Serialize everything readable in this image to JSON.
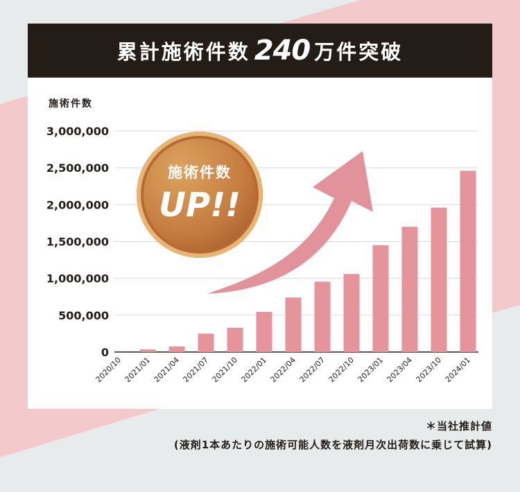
{
  "banner": {
    "prefix": "累計施術件数",
    "number": "240",
    "suffix": "万件突破"
  },
  "badge": {
    "line1": "施術件数",
    "line2": "UP!!"
  },
  "footnote": {
    "line1": "＊当社推計値",
    "line2": "(液剤1本あたりの施術可能人数を液剤月次出荷数に乗じて試算)"
  },
  "colors": {
    "bar": "#e6949c",
    "arrow": "#e2929a",
    "banner": "#231c17",
    "grid": "#d9d9d9"
  },
  "chart_data": {
    "type": "bar",
    "title": "累計施術件数240万件突破",
    "ylabel": "施術件数",
    "xlabel": "",
    "ylim": [
      0,
      3000000
    ],
    "yticks": [
      {
        "value": 0,
        "label": "0"
      },
      {
        "value": 500000,
        "label": "500,000"
      },
      {
        "value": 1000000,
        "label": "1,000,000"
      },
      {
        "value": 1500000,
        "label": "1,500,000"
      },
      {
        "value": 2000000,
        "label": "2,000,000"
      },
      {
        "value": 2500000,
        "label": "2,500,000"
      },
      {
        "value": 3000000,
        "label": "3,000,000"
      }
    ],
    "categories": [
      "2020/10",
      "2021/01",
      "2021/04",
      "2021/07",
      "2021/10",
      "2022/01",
      "2022/04",
      "2022/07",
      "2022/10",
      "2023/01",
      "2023/04",
      "2023/10",
      "2024/01"
    ],
    "values": [
      0,
      35000,
      75000,
      250000,
      330000,
      545000,
      740000,
      955000,
      1060000,
      1450000,
      1700000,
      1960000,
      2460000
    ],
    "grid": true,
    "legend": "none"
  }
}
